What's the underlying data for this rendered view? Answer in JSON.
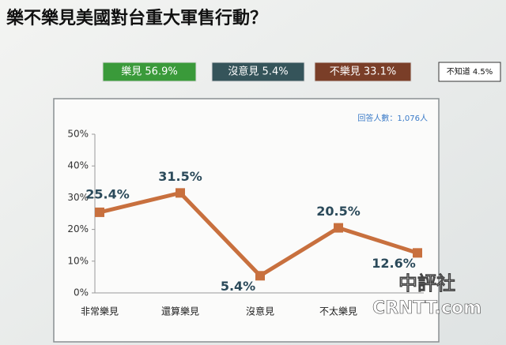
{
  "chart_data": {
    "type": "line",
    "title": "樂不樂見美國對台重大軍售行動？",
    "summary": [
      {
        "label": "樂見 56.9%",
        "color": "#3a9a3a"
      },
      {
        "label": "沒意見 5.4%",
        "color": "#35545a"
      },
      {
        "label": "不樂見 33.1%",
        "color": "#7a3e28"
      },
      {
        "label": "不知道 4.5%",
        "color": "#ffffff"
      }
    ],
    "note": "回答人數：1,076人",
    "categories": [
      "非常樂見",
      "還算樂見",
      "沒意見",
      "不太樂見",
      null
    ],
    "values": [
      25.4,
      31.5,
      5.4,
      20.5,
      12.6
    ],
    "value_labels": [
      "25.4%",
      "31.5%",
      "5.4%",
      "20.5%",
      "12.6%"
    ],
    "color": "#c8703e",
    "ylim": [
      0,
      50
    ],
    "yticks": [
      {
        "value": 0,
        "label": "0%"
      },
      {
        "value": 10,
        "label": "10%"
      },
      {
        "value": 20,
        "label": "20%"
      },
      {
        "value": 30,
        "label": "30%"
      },
      {
        "value": 40,
        "label": "40%"
      },
      {
        "value": 50,
        "label": "50%"
      }
    ],
    "watermark": [
      "中評社",
      "CRNTT.com"
    ]
  }
}
